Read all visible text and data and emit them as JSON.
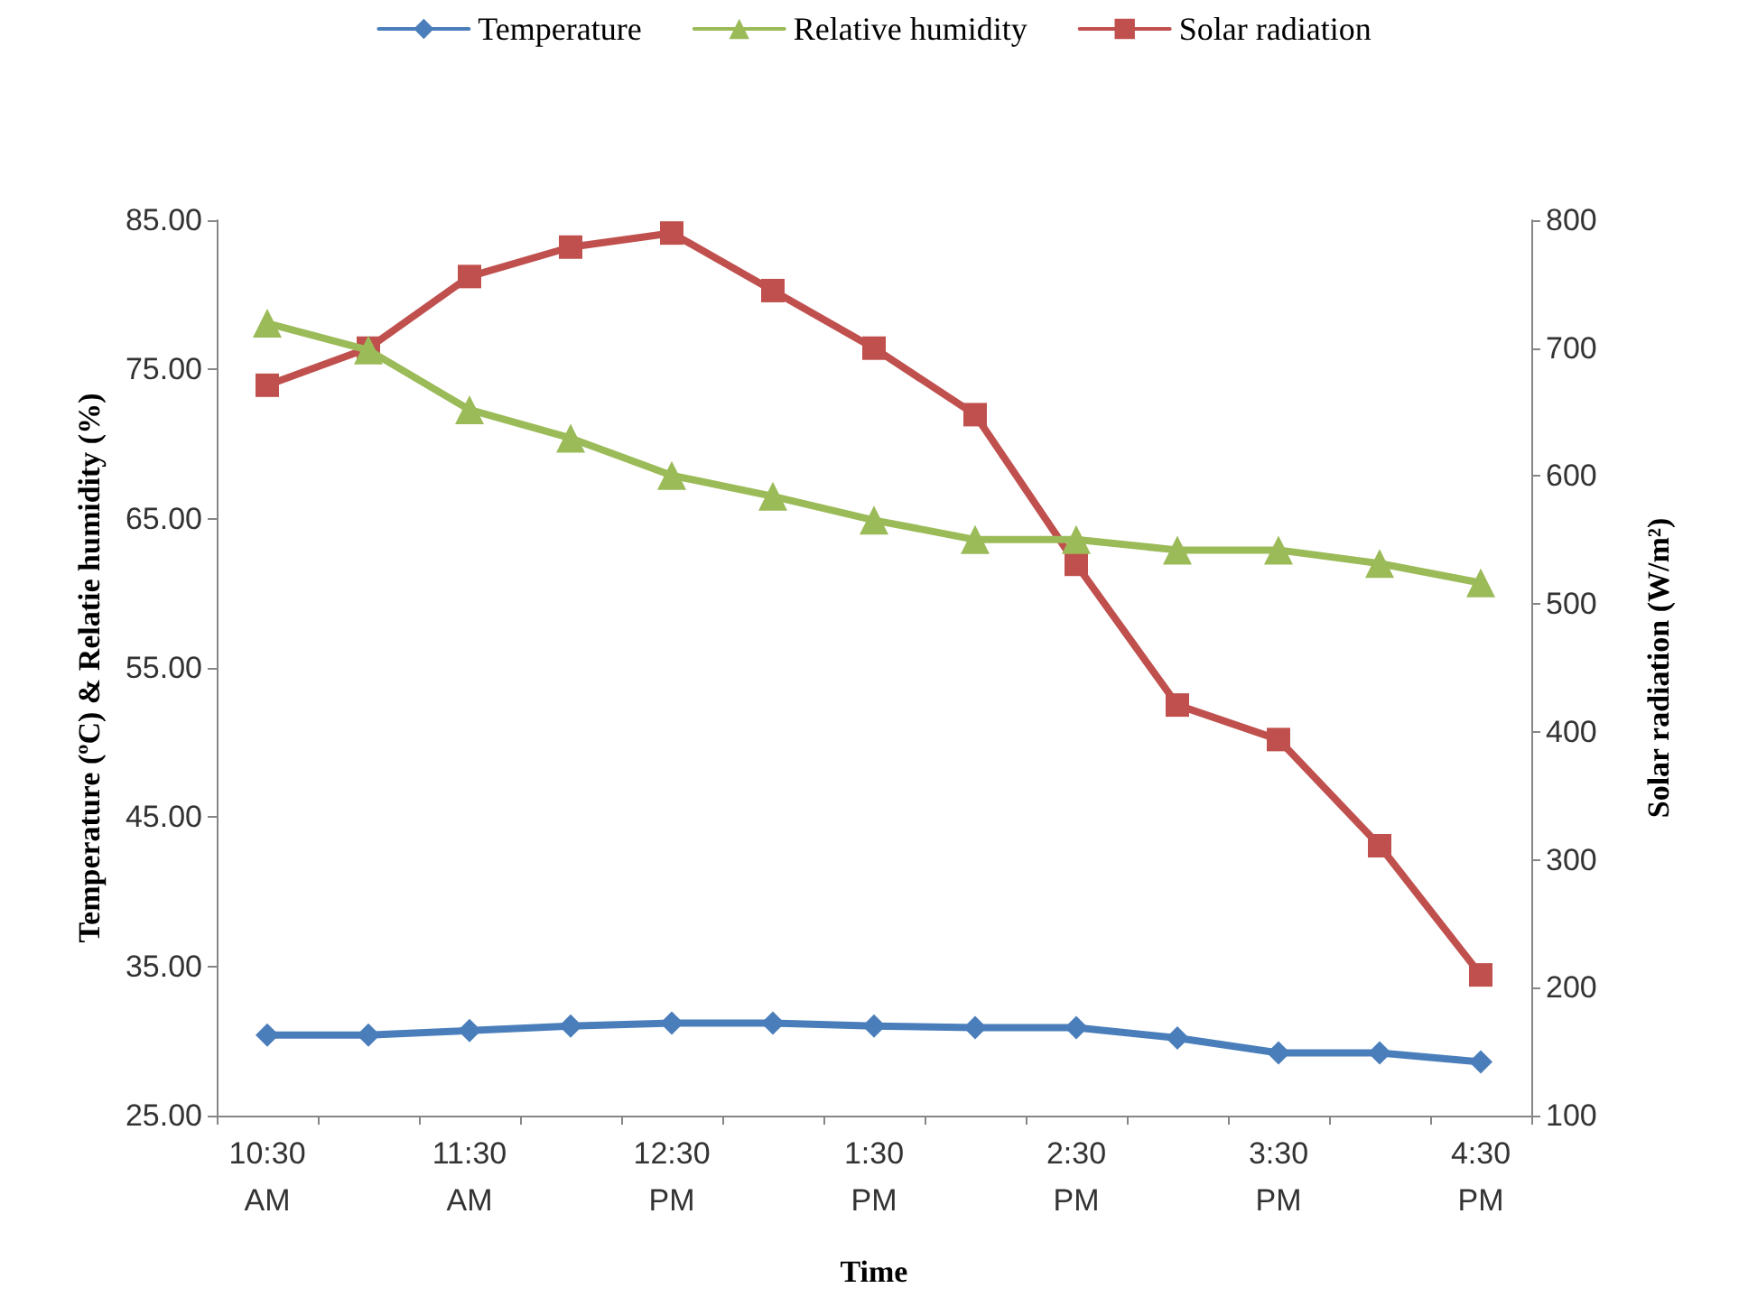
{
  "chart_data": {
    "type": "line",
    "xlabel": "Time",
    "ylabel": "Temperature (ºC) & Relatie humidity (%)",
    "y2label": "Solar radiation (W/m²)",
    "categories": [
      "10:30\nAM",
      null,
      "11:30\nAM",
      null,
      "12:30\nPM",
      null,
      "1:30\nPM",
      null,
      "2:30\nPM",
      null,
      "3:30\nPM",
      null,
      "4:30\nPM"
    ],
    "series": [
      {
        "name": "Temperature",
        "color": "#4a7ebb",
        "marker": "diamond",
        "values": [
          30.4,
          30.4,
          30.7,
          31.0,
          31.2,
          31.2,
          31.0,
          30.9,
          30.9,
          30.2,
          29.2,
          29.2,
          28.6
        ]
      },
      {
        "name": "Relative humidity",
        "color": "#9bbb59",
        "marker": "triangle",
        "values": [
          78.1,
          76.3,
          72.3,
          70.4,
          67.9,
          66.5,
          64.9,
          63.6,
          63.6,
          62.9,
          62.9,
          62.0,
          60.7
        ]
      },
      {
        "name": "Solar radiation",
        "color": "#c0504d",
        "marker": "square",
        "axis": "y2",
        "values": [
          671,
          700,
          756,
          779,
          790,
          745,
          700,
          648,
          531,
          421,
          394,
          311,
          210
        ]
      }
    ],
    "ylim": [
      25,
      85
    ],
    "yticks": [
      {
        "value": 25,
        "label": "25.00"
      },
      {
        "value": 35,
        "label": "35.00"
      },
      {
        "value": 45,
        "label": "45.00"
      },
      {
        "value": 55,
        "label": "55.00"
      },
      {
        "value": 65,
        "label": "65.00"
      },
      {
        "value": 75,
        "label": "75.00"
      },
      {
        "value": 85,
        "label": "85.00"
      }
    ],
    "y2lim": [
      100,
      800
    ],
    "y2ticks": [
      100,
      200,
      300,
      400,
      500,
      600,
      700,
      800
    ],
    "grid": false,
    "legend": "top",
    "line_style": "solid"
  }
}
